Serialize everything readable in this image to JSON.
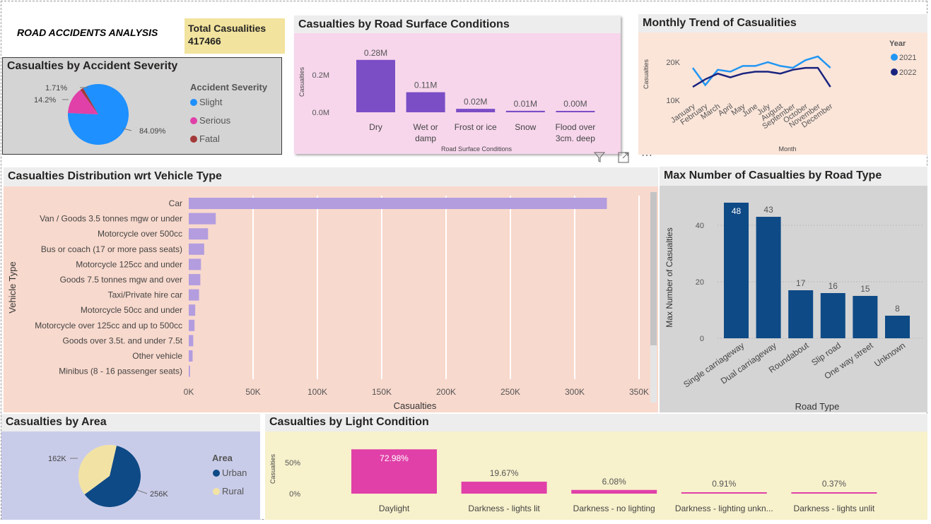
{
  "header": {
    "report_title": "ROAD ACCIDENTS ANALYSIS",
    "kpi_label": "Total Casualities",
    "kpi_value": "417466"
  },
  "icons": [
    "filter-icon",
    "focus-mode-icon",
    "more-options-icon"
  ],
  "colors": {
    "slight": "#1e90ff",
    "serious": "#e040a8",
    "fatal": "#a33a3a",
    "purple_bar": "#7b4ec6",
    "lavender_bar": "#b39ddf",
    "navy": "#0e4a86",
    "line_2021": "#2196f3",
    "line_2022": "#1a237e",
    "pink_bar": "#e040a8",
    "urban": "#0e4a86",
    "rural": "#f2e3a4"
  },
  "panels": {
    "severity": {
      "title": "Casualties by Accident Severity",
      "legend_title": "Accident Severity",
      "labels": [
        "84.09%",
        "14.2%",
        "1.71%"
      ]
    },
    "surface": {
      "title": "Casualties by Road Surface Conditions",
      "xlabel": "Road Surface Conditions",
      "ylabel": "Casualties",
      "ticks": [
        "0.2M",
        "0.0M"
      ],
      "categories": [
        [
          "Dry"
        ],
        [
          "Wet or",
          "damp"
        ],
        [
          "Frost or ice"
        ],
        [
          "Snow"
        ],
        [
          "Flood over",
          "3cm. deep"
        ]
      ],
      "data_labels": [
        "0.28M",
        "0.11M",
        "0.02M",
        "0.01M",
        "0.00M"
      ]
    },
    "monthly": {
      "title": "Monthly Trend of Casualities",
      "xlabel": "Month",
      "ylabel": "Casualties",
      "legend_title": "Year",
      "ticks": [
        "20K",
        "10K"
      ]
    },
    "vehicle": {
      "title": "Casualties Distribution wrt Vehicle Type",
      "xlabel": "Casualties",
      "ylabel": "Vehicle Type",
      "ticks": [
        "0K",
        "50K",
        "100K",
        "150K",
        "200K",
        "250K",
        "300K",
        "350K"
      ]
    },
    "road": {
      "title": "Max Number of Casualties by Road Type",
      "xlabel": "Road Type",
      "ylabel": "Max Number of Casualties",
      "ticks": [
        "0",
        "20",
        "40"
      ]
    },
    "area": {
      "title": "Casualties by Area",
      "legend_title": "Area",
      "labels": [
        "256K",
        "162K"
      ]
    },
    "light": {
      "title": "Casualties by Light Condition",
      "ylabel": "Casualties",
      "ticks": [
        "50%",
        "0%"
      ],
      "categories": [
        "Daylight",
        "Darkness - lights lit",
        "Darkness - no lighting",
        "Darkness - lighting unkn...",
        "Darkness - lights unlit"
      ],
      "data_labels": [
        "72.98%",
        "19.67%",
        "6.08%",
        "0.91%",
        "0.37%"
      ]
    }
  },
  "chart_data": [
    {
      "type": "pie",
      "title": "Casualties by Accident Severity",
      "categories": [
        "Slight",
        "Serious",
        "Fatal"
      ],
      "values": [
        84.09,
        14.2,
        1.71
      ],
      "legend": "right"
    },
    {
      "type": "bar",
      "title": "Casualties by Road Surface Conditions",
      "categories": [
        "Dry",
        "Wet or damp",
        "Frost or ice",
        "Snow",
        "Flood over 3cm. deep"
      ],
      "values": [
        279445,
        107076,
        18517,
        8034,
        394
      ],
      "xlabel": "Road Surface Conditions",
      "ylabel": "Casualties",
      "ylim": [
        0,
        290000
      ]
    },
    {
      "type": "line",
      "title": "Monthly Trend of Casualities",
      "x": [
        "January",
        "February",
        "March",
        "April",
        "May",
        "June",
        "July",
        "August",
        "September",
        "October",
        "November",
        "December"
      ],
      "series": [
        {
          "name": "2021",
          "values": [
            18.5,
            14,
            18,
            17.5,
            19,
            19,
            20,
            19,
            18.5,
            20.5,
            21.5,
            18.5
          ]
        },
        {
          "name": "2022",
          "values": [
            13.5,
            15.5,
            17,
            16,
            17,
            17.5,
            17.5,
            17,
            18,
            18.5,
            18.5,
            13.5
          ]
        }
      ],
      "xlabel": "Month",
      "ylabel": "Casualties",
      "ylim": [
        8,
        24
      ],
      "legend": "right"
    },
    {
      "type": "bar",
      "orientation": "horizontal",
      "title": "Casualties Distribution wrt Vehicle Type",
      "categories": [
        "Car",
        "Van / Goods 3.5 tonnes mgw or under",
        "Motorcycle over 500cc",
        "Bus or coach (17 or more pass seats)",
        "Motorcycle 125cc and under",
        "Goods 7.5 tonnes mgw and over",
        "Taxi/Private hire car",
        "Motorcycle 50cc and under",
        "Motorcycle over 125cc and up to 500cc",
        "Goods over 3.5t. and under 7.5t",
        "Other vehicle",
        "Minibus (8 - 16 passenger seats)"
      ],
      "values": [
        325000,
        21000,
        15000,
        12000,
        9500,
        9000,
        8000,
        5000,
        4500,
        3500,
        3000,
        1000
      ],
      "xlabel": "Casualties",
      "ylabel": "Vehicle Type",
      "xlim": [
        0,
        355000
      ]
    },
    {
      "type": "bar",
      "title": "Max Number of Casualties by Road Type",
      "categories": [
        "Single carriageway",
        "Dual carriageway",
        "Roundabout",
        "Slip road",
        "One way street",
        "Unknown"
      ],
      "values": [
        48,
        43,
        17,
        16,
        15,
        8
      ],
      "xlabel": "Road Type",
      "ylabel": "Max Number of Casualties",
      "ylim": [
        0,
        52
      ]
    },
    {
      "type": "pie",
      "title": "Casualties by Area",
      "categories": [
        "Urban",
        "Rural"
      ],
      "values": [
        256,
        162
      ],
      "legend": "right"
    },
    {
      "type": "bar",
      "title": "Casualties by Light Condition",
      "categories": [
        "Daylight",
        "Darkness - lights lit",
        "Darkness - no lighting",
        "Darkness - lighting unkn...",
        "Darkness - lights unlit"
      ],
      "values": [
        72.98,
        19.67,
        6.08,
        0.91,
        0.37
      ],
      "ylabel": "Casualties",
      "ylim": [
        0,
        80
      ]
    }
  ]
}
